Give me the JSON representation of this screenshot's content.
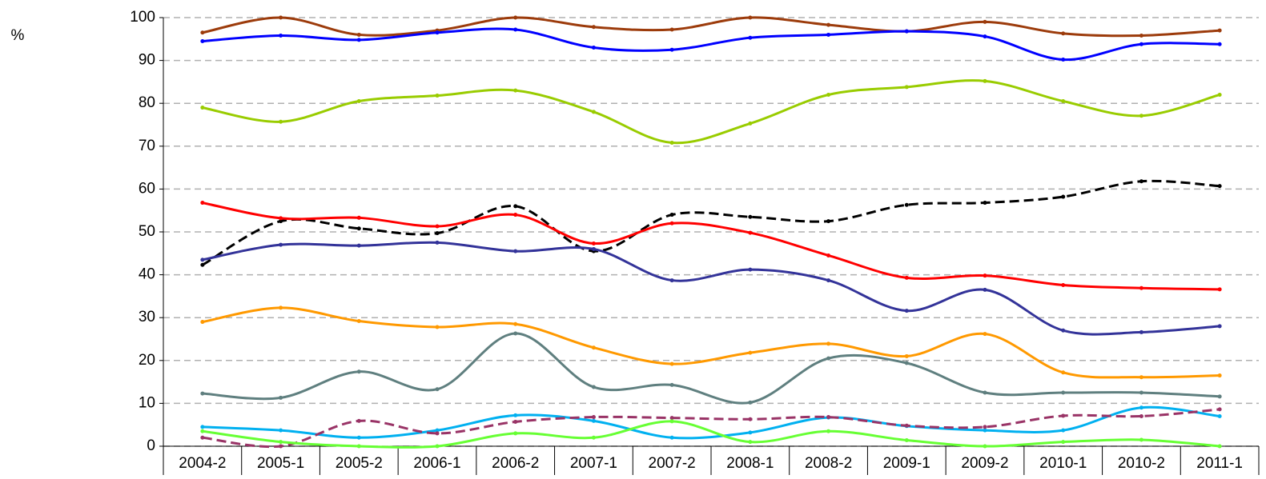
{
  "chart_data": {
    "type": "line",
    "ylabel": "%",
    "categories": [
      "2004-2",
      "2005-1",
      "2005-2",
      "2006-1",
      "2006-2",
      "2007-1",
      "2007-2",
      "2008-1",
      "2008-2",
      "2009-1",
      "2009-2",
      "2010-1",
      "2010-2",
      "2011-1"
    ],
    "ylim": [
      0,
      100
    ],
    "yticks": [
      0,
      10,
      20,
      30,
      40,
      50,
      60,
      70,
      80,
      90,
      100
    ],
    "grid": true,
    "smooth": true,
    "series": [
      {
        "color": "#9c3b0b",
        "values": [
          96.5,
          100,
          96,
          97,
          100,
          97.8,
          97.2,
          100,
          98.3,
          96.8,
          99,
          96.3,
          95.8,
          97
        ]
      },
      {
        "color": "#0000ff",
        "values": [
          94.5,
          95.8,
          94.8,
          96.5,
          97.2,
          93,
          92.5,
          95.3,
          96,
          96.8,
          95.6,
          90.2,
          93.8,
          93.8
        ]
      },
      {
        "color": "#99cc00",
        "values": [
          79,
          75.7,
          80.5,
          81.8,
          83,
          78,
          70.8,
          75.3,
          82,
          83.8,
          85.2,
          80.5,
          77.1,
          82
        ]
      },
      {
        "color": "#000000",
        "dashed": true,
        "values": [
          42.3,
          52.5,
          50.8,
          49.7,
          56,
          45.5,
          54,
          53.5,
          52.5,
          56.3,
          56.8,
          58.2,
          61.8,
          60.7
        ]
      },
      {
        "color": "#ff0000",
        "values": [
          56.8,
          53.2,
          53.3,
          51.3,
          54,
          47.3,
          52,
          49.8,
          44.5,
          39.3,
          39.8,
          37.6,
          36.9,
          36.6
        ]
      },
      {
        "color": "#333399",
        "values": [
          43.5,
          47,
          46.8,
          47.5,
          45.5,
          46,
          38.7,
          41.2,
          38.7,
          31.6,
          36.5,
          27,
          26.6,
          28
        ]
      },
      {
        "color": "#ff9900",
        "values": [
          29,
          32.3,
          29.2,
          27.8,
          28.5,
          23,
          19.2,
          21.8,
          23.9,
          21,
          26.2,
          17.2,
          16.1,
          16.5
        ]
      },
      {
        "color": "#5f7f7f",
        "values": [
          12.3,
          11.3,
          17.4,
          13.3,
          26.3,
          13.8,
          14.3,
          10.2,
          20.5,
          19.4,
          12.5,
          12.5,
          12.5,
          11.6
        ]
      },
      {
        "color": "#00b0f0",
        "values": [
          4.5,
          3.7,
          2,
          3.7,
          7.2,
          5.9,
          2,
          3.2,
          6.7,
          4.7,
          3.7,
          3.7,
          9,
          7
        ]
      },
      {
        "color": "#993366",
        "dashed": true,
        "values": [
          2,
          0,
          5.9,
          3,
          5.7,
          6.8,
          6.6,
          6.3,
          6.8,
          4.8,
          4.5,
          7.1,
          7,
          8.6
        ]
      },
      {
        "color": "#66ff33",
        "values": [
          3.5,
          1,
          0,
          0,
          3,
          2,
          5.8,
          1,
          3.5,
          1.4,
          0,
          1,
          1.5,
          0
        ]
      }
    ]
  }
}
